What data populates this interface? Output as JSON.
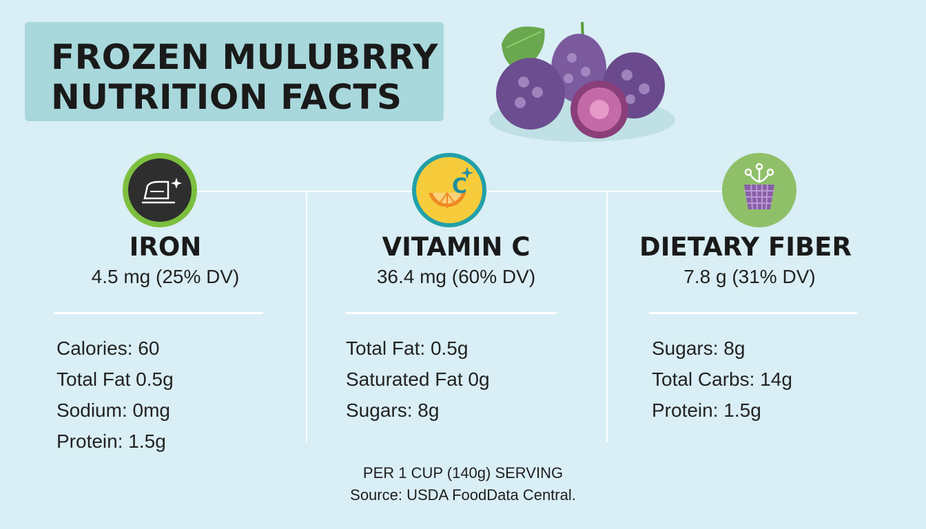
{
  "title": {
    "line1": "FROZEN MULUBRRY",
    "line2": "NUTRITION FACTS"
  },
  "colors": {
    "background": "#d9eef5",
    "title_box": "#a8d8dc",
    "iron_ring": "#7cbf3f",
    "vitamin_ring": "#22a0a8",
    "fiber_circle": "#8fc069"
  },
  "columns": [
    {
      "icon": "iron-icon",
      "title": "IRON",
      "value": "4.5 mg (25% DV)",
      "items": [
        "Calories: 60",
        "Total Fat 0.5g",
        "Sodium: 0mg",
        "Protein: 1.5g"
      ]
    },
    {
      "icon": "vitamin-c-icon",
      "title": "VITAMIN C",
      "value": "36.4 mg (60% DV)",
      "items": [
        "Total Fat: 0.5g",
        "Saturated Fat 0g",
        "Sugars: 8g"
      ]
    },
    {
      "icon": "fiber-icon",
      "title": "DIETARY FIBER",
      "value": "7.8 g (31% DV)",
      "items": [
        "Sugars: 8g",
        "Total Carbs: 14g",
        "Protein: 1.5g"
      ]
    }
  ],
  "footer": {
    "serving": "PER 1 CUP (140g) SERVING",
    "source": "Source: USDA FoodData Central."
  }
}
